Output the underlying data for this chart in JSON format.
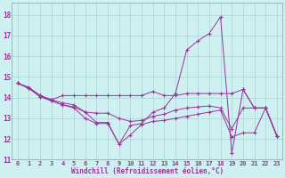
{
  "xlabel": "Windchill (Refroidissement éolien,°C)",
  "bg_color": "#cff0f0",
  "grid_color": "#aad4d4",
  "line_color": "#993399",
  "xlim": [
    -0.5,
    23.5
  ],
  "ylim": [
    11,
    18.6
  ],
  "yticks": [
    11,
    12,
    13,
    14,
    15,
    16,
    17,
    18
  ],
  "xticks": [
    0,
    1,
    2,
    3,
    4,
    5,
    6,
    7,
    8,
    9,
    10,
    11,
    12,
    13,
    14,
    15,
    16,
    17,
    18,
    19,
    20,
    21,
    22,
    23
  ],
  "lines": [
    {
      "x": [
        0,
        1,
        2,
        3,
        4,
        5,
        6,
        7,
        8,
        9,
        10,
        11,
        12,
        13,
        14,
        15,
        16,
        17,
        18,
        19,
        20,
        21,
        22,
        23
      ],
      "y": [
        14.7,
        14.5,
        14.1,
        13.9,
        13.75,
        13.65,
        13.3,
        12.8,
        12.8,
        11.75,
        12.65,
        12.75,
        13.3,
        13.5,
        14.2,
        16.3,
        16.75,
        17.1,
        17.9,
        11.3,
        14.4,
        13.5,
        13.5,
        12.15
      ]
    },
    {
      "x": [
        0,
        1,
        2,
        3,
        4,
        5,
        6,
        7,
        8,
        9,
        10,
        11,
        12,
        13,
        14,
        15,
        16,
        17,
        18,
        19,
        20,
        21,
        22,
        23
      ],
      "y": [
        14.7,
        14.45,
        14.1,
        13.9,
        14.1,
        14.1,
        14.1,
        14.1,
        14.1,
        14.1,
        14.1,
        14.1,
        14.3,
        14.1,
        14.1,
        14.2,
        14.2,
        14.2,
        14.2,
        14.2,
        14.4,
        13.5,
        13.5,
        12.15
      ]
    },
    {
      "x": [
        0,
        1,
        2,
        3,
        4,
        5,
        6,
        7,
        8,
        9,
        10,
        11,
        12,
        13,
        14,
        15,
        16,
        17,
        18,
        19,
        20,
        21,
        22,
        23
      ],
      "y": [
        14.7,
        14.45,
        14.05,
        13.85,
        13.65,
        13.55,
        13.3,
        13.25,
        13.25,
        13.0,
        12.85,
        12.9,
        13.1,
        13.2,
        13.4,
        13.5,
        13.55,
        13.6,
        13.5,
        12.5,
        13.5,
        13.5,
        13.5,
        12.15
      ]
    },
    {
      "x": [
        0,
        1,
        2,
        3,
        4,
        5,
        6,
        7,
        8,
        9,
        10,
        11,
        12,
        13,
        14,
        15,
        16,
        17,
        18,
        19,
        20,
        21,
        22,
        23
      ],
      "y": [
        14.7,
        14.45,
        14.05,
        13.85,
        13.65,
        13.5,
        13.0,
        12.75,
        12.75,
        11.75,
        12.2,
        12.7,
        12.85,
        12.9,
        13.0,
        13.1,
        13.2,
        13.3,
        13.4,
        12.1,
        12.3,
        12.3,
        13.5,
        12.15
      ]
    }
  ]
}
